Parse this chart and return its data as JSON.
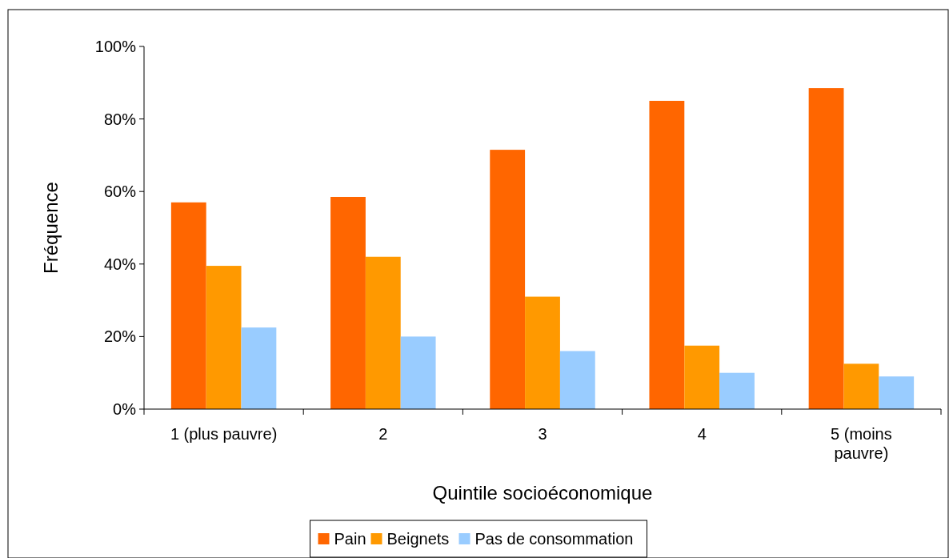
{
  "chart_data": {
    "type": "bar",
    "xlabel": "Quintile socioéconomique",
    "ylabel": "Fréquence",
    "categories": [
      "1 (plus pauvre)",
      "2",
      "3",
      "4",
      "5 (moins pauvre)"
    ],
    "series": [
      {
        "name": "Pain",
        "color": "#ff6600",
        "values": [
          57,
          58.5,
          71.5,
          85,
          88.5
        ]
      },
      {
        "name": "Beignets",
        "color": "#ff9900",
        "values": [
          39.5,
          42,
          31,
          17.5,
          12.5
        ]
      },
      {
        "name": "Pas de consommation",
        "color": "#99ccff",
        "values": [
          22.5,
          20,
          16,
          10,
          9
        ]
      }
    ],
    "ylim": [
      0,
      100
    ],
    "yticks": [
      {
        "value": 0,
        "label": "0%"
      },
      {
        "value": 20,
        "label": "20%"
      },
      {
        "value": 40,
        "label": "40%"
      },
      {
        "value": 60,
        "label": "60%"
      },
      {
        "value": 80,
        "label": "80%"
      },
      {
        "value": 100,
        "label": "100%"
      }
    ],
    "grid": false,
    "legend": "bottom"
  }
}
